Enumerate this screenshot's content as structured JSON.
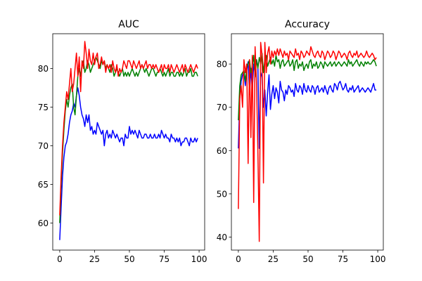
{
  "chart_data": [
    {
      "type": "line",
      "title": "AUC",
      "xlabel": "",
      "ylabel": "",
      "xlim": [
        -5,
        104
      ],
      "ylim": [
        56.5,
        84.5
      ],
      "xticks": [
        0,
        25,
        50,
        75,
        100
      ],
      "yticks": [
        60,
        65,
        70,
        75,
        80
      ],
      "grid": false,
      "legend": "none",
      "x": [
        0,
        1,
        2,
        3,
        4,
        5,
        6,
        7,
        8,
        9,
        10,
        11,
        12,
        13,
        14,
        15,
        16,
        17,
        18,
        19,
        20,
        21,
        22,
        23,
        24,
        25,
        26,
        27,
        28,
        29,
        30,
        31,
        32,
        33,
        34,
        35,
        36,
        37,
        38,
        39,
        40,
        41,
        42,
        43,
        44,
        45,
        46,
        47,
        48,
        49,
        50,
        51,
        52,
        53,
        54,
        55,
        56,
        57,
        58,
        59,
        60,
        61,
        62,
        63,
        64,
        65,
        66,
        67,
        68,
        69,
        70,
        71,
        72,
        73,
        74,
        75,
        76,
        77,
        78,
        79,
        80,
        81,
        82,
        83,
        84,
        85,
        86,
        87,
        88,
        89,
        90,
        91,
        92,
        93,
        94,
        95,
        96,
        97,
        98,
        99
      ],
      "series": [
        {
          "color": "#0000ff",
          "values": [
            57.8,
            62.0,
            66.0,
            68.5,
            70.0,
            70.5,
            71.5,
            73.0,
            74.0,
            74.5,
            75.5,
            75.0,
            76.5,
            77.5,
            76.5,
            75.0,
            74.0,
            73.5,
            72.5,
            74.0,
            73.0,
            74.0,
            72.0,
            72.5,
            71.5,
            72.0,
            71.5,
            73.0,
            72.5,
            72.0,
            71.5,
            72.0,
            70.0,
            71.5,
            72.0,
            71.0,
            71.5,
            71.0,
            72.0,
            71.5,
            71.0,
            71.5,
            71.0,
            70.5,
            71.0,
            71.0,
            70.0,
            71.5,
            71.0,
            71.0,
            72.5,
            71.5,
            72.0,
            71.5,
            72.0,
            71.5,
            71.0,
            72.0,
            71.5,
            71.0,
            71.0,
            71.5,
            71.5,
            71.0,
            71.0,
            71.5,
            71.0,
            71.0,
            71.5,
            71.0,
            71.0,
            71.5,
            71.0,
            72.0,
            71.5,
            71.0,
            71.5,
            71.0,
            71.0,
            70.5,
            71.5,
            71.0,
            71.0,
            70.5,
            71.0,
            70.5,
            71.0,
            70.0,
            70.5,
            70.5,
            71.0,
            71.0,
            70.5,
            70.0,
            71.0,
            70.5,
            70.5,
            71.0,
            70.5,
            71.0
          ]
        },
        {
          "color": "#008000",
          "values": [
            60.0,
            65.0,
            69.0,
            72.0,
            74.5,
            76.0,
            75.0,
            76.5,
            77.5,
            78.0,
            75.0,
            74.0,
            76.5,
            79.0,
            80.0,
            79.0,
            80.5,
            81.0,
            79.5,
            80.0,
            81.0,
            80.5,
            79.5,
            80.0,
            80.5,
            81.0,
            81.5,
            81.0,
            80.5,
            80.0,
            81.0,
            80.5,
            81.0,
            80.0,
            80.5,
            80.0,
            79.5,
            80.5,
            80.0,
            79.0,
            79.5,
            80.0,
            79.5,
            79.0,
            79.5,
            80.0,
            79.0,
            79.5,
            79.0,
            79.5,
            79.0,
            79.5,
            80.0,
            79.5,
            79.0,
            79.5,
            79.0,
            79.5,
            80.0,
            80.5,
            80.0,
            79.5,
            80.0,
            79.5,
            79.0,
            79.5,
            80.0,
            80.0,
            79.5,
            79.0,
            79.5,
            79.5,
            80.0,
            79.5,
            79.0,
            79.5,
            79.0,
            79.5,
            80.0,
            79.0,
            79.5,
            79.5,
            79.0,
            79.0,
            79.5,
            79.5,
            79.0,
            79.5,
            79.0,
            79.5,
            80.0,
            79.0,
            79.5,
            79.5,
            80.0,
            79.0,
            79.0,
            79.5,
            79.5,
            79.0
          ]
        },
        {
          "color": "#ff0000",
          "values": [
            61.0,
            66.0,
            70.0,
            73.0,
            75.0,
            77.0,
            76.0,
            78.0,
            80.0,
            77.0,
            78.0,
            80.0,
            82.0,
            79.0,
            81.5,
            77.0,
            81.0,
            80.0,
            83.5,
            82.0,
            80.0,
            82.5,
            81.0,
            80.5,
            82.0,
            80.5,
            81.5,
            82.0,
            80.0,
            80.5,
            81.5,
            80.5,
            81.0,
            79.5,
            80.5,
            80.0,
            80.5,
            79.5,
            81.0,
            80.0,
            79.5,
            80.5,
            79.0,
            80.0,
            79.5,
            80.0,
            81.0,
            80.5,
            80.0,
            81.0,
            81.0,
            80.5,
            80.0,
            81.0,
            80.5,
            80.0,
            80.5,
            81.0,
            80.0,
            80.5,
            80.0,
            80.5,
            81.0,
            80.0,
            80.5,
            80.5,
            80.0,
            80.5,
            80.0,
            80.5,
            80.0,
            79.5,
            80.0,
            80.5,
            79.5,
            80.5,
            80.0,
            80.0,
            80.5,
            79.5,
            80.5,
            80.0,
            79.5,
            80.0,
            80.5,
            80.0,
            79.5,
            80.0,
            80.5,
            79.5,
            80.5,
            80.0,
            79.5,
            80.0,
            80.5,
            80.0,
            79.5,
            80.0,
            80.5,
            80.0
          ]
        }
      ]
    },
    {
      "type": "line",
      "title": "Accuracy",
      "xlabel": "",
      "ylabel": "",
      "xlim": [
        -5,
        104
      ],
      "ylim": [
        37,
        87
      ],
      "xticks": [
        0,
        25,
        50,
        75,
        100
      ],
      "yticks": [
        40,
        50,
        60,
        70,
        80
      ],
      "grid": false,
      "legend": "none",
      "x": [
        0,
        1,
        2,
        3,
        4,
        5,
        6,
        7,
        8,
        9,
        10,
        11,
        12,
        13,
        14,
        15,
        16,
        17,
        18,
        19,
        20,
        21,
        22,
        23,
        24,
        25,
        26,
        27,
        28,
        29,
        30,
        31,
        32,
        33,
        34,
        35,
        36,
        37,
        38,
        39,
        40,
        41,
        42,
        43,
        44,
        45,
        46,
        47,
        48,
        49,
        50,
        51,
        52,
        53,
        54,
        55,
        56,
        57,
        58,
        59,
        60,
        61,
        62,
        63,
        64,
        65,
        66,
        67,
        68,
        69,
        70,
        71,
        72,
        73,
        74,
        75,
        76,
        77,
        78,
        79,
        80,
        81,
        82,
        83,
        84,
        85,
        86,
        87,
        88,
        89,
        90,
        91,
        92,
        93,
        94,
        95,
        96,
        97,
        98,
        99
      ],
      "series": [
        {
          "color": "#0000ff",
          "values": [
            60.5,
            72.0,
            76.0,
            77.5,
            78.0,
            75.0,
            78.5,
            80.5,
            73.0,
            79.0,
            74.0,
            80.0,
            78.0,
            81.0,
            79.5,
            60.5,
            78.0,
            77.0,
            70.0,
            74.0,
            68.0,
            73.5,
            77.5,
            69.5,
            73.0,
            75.0,
            72.0,
            74.5,
            73.5,
            71.0,
            76.0,
            74.0,
            73.5,
            71.5,
            74.0,
            73.0,
            75.0,
            74.5,
            73.5,
            74.0,
            72.5,
            75.5,
            74.0,
            73.5,
            75.0,
            74.5,
            73.0,
            75.5,
            74.0,
            73.5,
            75.0,
            74.0,
            73.5,
            75.0,
            74.5,
            73.0,
            74.5,
            75.0,
            73.5,
            74.0,
            74.5,
            73.5,
            75.0,
            74.0,
            73.0,
            74.5,
            75.0,
            74.0,
            73.5,
            75.5,
            75.0,
            74.0,
            75.5,
            76.0,
            75.0,
            74.0,
            74.5,
            75.5,
            74.0,
            73.5,
            74.5,
            74.0,
            75.0,
            73.5,
            74.0,
            74.5,
            75.0,
            73.5,
            74.0,
            74.5,
            74.0,
            73.5,
            74.0,
            74.5,
            74.0,
            73.5,
            74.5,
            75.5,
            74.0,
            74.0
          ]
        },
        {
          "color": "#008000",
          "values": [
            67.0,
            75.0,
            77.5,
            78.0,
            78.5,
            76.0,
            79.0,
            80.0,
            81.0,
            78.0,
            79.5,
            82.0,
            77.0,
            81.0,
            79.0,
            81.5,
            80.0,
            82.5,
            78.0,
            81.0,
            82.0,
            79.5,
            80.5,
            81.5,
            80.0,
            81.0,
            79.5,
            82.0,
            80.5,
            81.0,
            79.0,
            80.5,
            81.0,
            79.5,
            80.0,
            80.5,
            81.0,
            79.5,
            80.0,
            81.0,
            78.5,
            80.5,
            81.0,
            79.0,
            80.0,
            79.5,
            80.5,
            78.5,
            79.5,
            80.0,
            79.0,
            80.5,
            81.0,
            79.0,
            80.0,
            79.5,
            80.5,
            79.0,
            79.5,
            80.5,
            80.0,
            79.0,
            80.5,
            80.0,
            79.5,
            80.0,
            80.5,
            79.5,
            80.0,
            80.5,
            79.5,
            80.0,
            80.5,
            80.0,
            79.5,
            80.0,
            80.5,
            80.0,
            79.5,
            81.0,
            80.0,
            80.5,
            79.5,
            80.0,
            80.5,
            81.0,
            80.0,
            79.5,
            80.5,
            80.0,
            79.5,
            80.5,
            80.0,
            80.5,
            80.0,
            80.0,
            80.5,
            81.0,
            80.5,
            79.5
          ]
        },
        {
          "color": "#ff0000",
          "values": [
            46.5,
            72.0,
            75.0,
            70.0,
            81.0,
            78.0,
            80.0,
            57.0,
            81.0,
            63.0,
            82.0,
            48.0,
            84.0,
            76.0,
            60.0,
            39.0,
            85.0,
            82.0,
            52.5,
            85.0,
            78.0,
            82.5,
            84.0,
            80.0,
            83.0,
            81.5,
            83.0,
            82.0,
            83.5,
            82.0,
            83.5,
            82.5,
            81.5,
            83.0,
            82.0,
            82.5,
            81.0,
            83.0,
            82.5,
            82.0,
            81.5,
            83.5,
            82.0,
            82.5,
            81.0,
            83.0,
            82.5,
            81.5,
            82.0,
            83.0,
            82.5,
            82.0,
            84.0,
            83.0,
            82.0,
            81.5,
            82.5,
            83.0,
            82.0,
            81.5,
            83.0,
            82.5,
            81.0,
            82.0,
            83.0,
            82.5,
            81.5,
            82.0,
            83.0,
            82.5,
            81.0,
            82.0,
            83.0,
            82.5,
            81.5,
            82.0,
            82.5,
            82.0,
            81.0,
            82.5,
            83.0,
            82.0,
            81.5,
            82.5,
            82.0,
            83.0,
            81.5,
            82.0,
            82.5,
            82.0,
            81.5,
            82.0,
            83.0,
            82.0,
            81.5,
            82.0,
            82.5,
            82.0,
            81.0,
            81.5
          ]
        }
      ]
    }
  ]
}
